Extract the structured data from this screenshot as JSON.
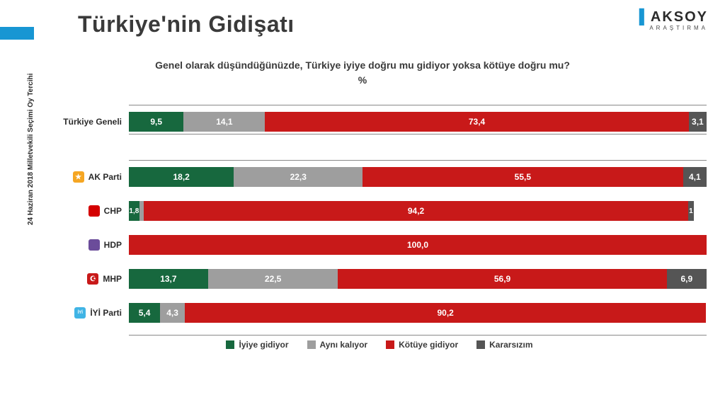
{
  "page_title": "Türkiye'nin Gidişatı",
  "brand": {
    "name": "AKSOY",
    "sub": "ARAŞTIRMA"
  },
  "question_line1": "Genel olarak düşündüğünüzde, Türkiye iyiye doğru mu gidiyor yoksa kötüye doğru mu?",
  "question_line2": "%",
  "yaxis_label": "24 Haziran 2018 Milletvekili Seçimi Oy Tercihi",
  "colors": {
    "good": "#17683e",
    "same": "#9e9e9e",
    "bad": "#c81919",
    "dk": "#555555",
    "accent": "#1896d3"
  },
  "legend": [
    {
      "key": "good",
      "label": "İyiye gidiyor"
    },
    {
      "key": "same",
      "label": "Aynı kalıyor"
    },
    {
      "key": "bad",
      "label": "Kötüye gidiyor"
    },
    {
      "key": "dk",
      "label": "Kararsızım"
    }
  ],
  "overall": {
    "label": "Türkiye Geneli",
    "segments": [
      {
        "key": "good",
        "value": 9.5,
        "text": "9,5"
      },
      {
        "key": "same",
        "value": 14.1,
        "text": "14,1"
      },
      {
        "key": "bad",
        "value": 73.4,
        "text": "73,4"
      },
      {
        "key": "dk",
        "value": 3.1,
        "text": "3,1"
      }
    ]
  },
  "parties": [
    {
      "label": "AK Parti",
      "icon_bg": "#f5a623",
      "icon_text": "★",
      "segments": [
        {
          "key": "good",
          "value": 18.2,
          "text": "18,2"
        },
        {
          "key": "same",
          "value": 22.3,
          "text": "22,3"
        },
        {
          "key": "bad",
          "value": 55.5,
          "text": "55,5"
        },
        {
          "key": "dk",
          "value": 4.1,
          "text": "4,1"
        }
      ]
    },
    {
      "label": "CHP",
      "icon_bg": "#d40000",
      "icon_text": "",
      "segments": [
        {
          "key": "good",
          "value": 1.8,
          "text": "1,8"
        },
        {
          "key": "same",
          "value": 0.8,
          "text": "0,8",
          "hide_text": true
        },
        {
          "key": "bad",
          "value": 94.2,
          "text": "94,2"
        },
        {
          "key": "dk",
          "value": 1.0,
          "text": "1"
        }
      ]
    },
    {
      "label": "HDP",
      "icon_bg": "#6b4c9a",
      "icon_text": "",
      "segments": [
        {
          "key": "bad",
          "value": 100.0,
          "text": "100,0"
        }
      ]
    },
    {
      "label": "MHP",
      "icon_bg": "#c81919",
      "icon_text": "☪",
      "segments": [
        {
          "key": "good",
          "value": 13.7,
          "text": "13,7"
        },
        {
          "key": "same",
          "value": 22.5,
          "text": "22,5"
        },
        {
          "key": "bad",
          "value": 56.9,
          "text": "56,9"
        },
        {
          "key": "dk",
          "value": 6.9,
          "text": "6,9"
        }
      ]
    },
    {
      "label": "İYİ Parti",
      "icon_bg": "#40b4e5",
      "icon_text": "İYİ",
      "icon_font": "6px",
      "segments": [
        {
          "key": "good",
          "value": 5.4,
          "text": "5,4"
        },
        {
          "key": "same",
          "value": 4.3,
          "text": "4,3"
        },
        {
          "key": "bad",
          "value": 90.2,
          "text": "90,2"
        }
      ]
    }
  ]
}
